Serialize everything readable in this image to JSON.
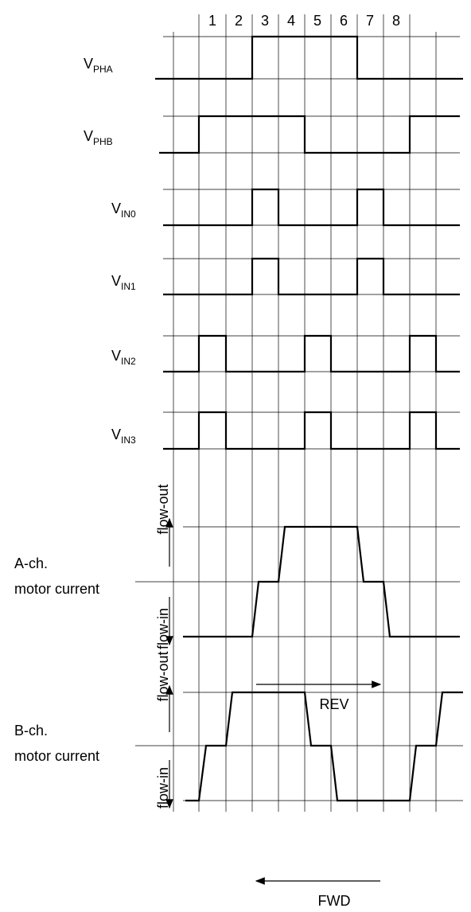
{
  "steps": [
    "1",
    "2",
    "3",
    "4",
    "5",
    "6",
    "7",
    "8"
  ],
  "signals": [
    {
      "main": "V",
      "sub": "PHA"
    },
    {
      "main": "V",
      "sub": "PHB"
    },
    {
      "main": "V",
      "sub": "IN0"
    },
    {
      "main": "V",
      "sub": "IN1"
    },
    {
      "main": "V",
      "sub": "IN2"
    },
    {
      "main": "V",
      "sub": "IN3"
    }
  ],
  "currents": [
    {
      "channel": "A-ch.",
      "label": "motor current",
      "out": "flow-out",
      "in": "flow-in"
    },
    {
      "channel": "B-ch.",
      "label": "motor current",
      "out": "flow-out",
      "in": "flow-in"
    }
  ],
  "directions": {
    "rev": "REV",
    "fwd": "FWD"
  }
}
